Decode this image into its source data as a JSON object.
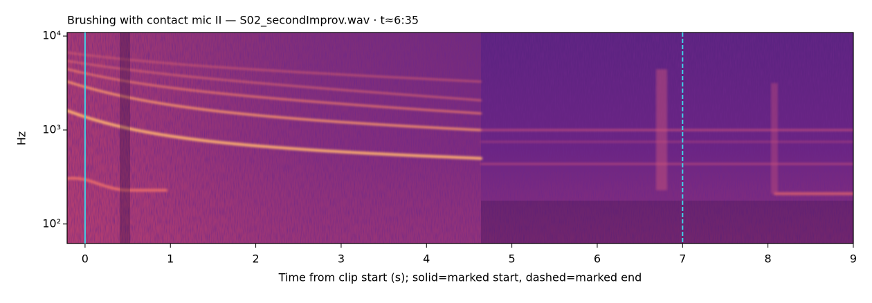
{
  "chart_data": {
    "type": "spectrogram",
    "title": "Brushing with contact mic II  —  S02_secondImprov.wav · t≈6:35",
    "x_label": "Time from clip start (s); solid=marked start, dashed=marked end",
    "y_label": "Hz",
    "xlim": [
      -0.21,
      9.0
    ],
    "xticks": [
      0,
      1,
      2,
      3,
      4,
      5,
      6,
      7,
      8,
      9
    ],
    "ylim": [
      62,
      10900
    ],
    "yscale": "log",
    "yticks": [
      {
        "value": 100,
        "label": "10²"
      },
      {
        "value": 1000,
        "label": "10³"
      },
      {
        "value": 10000,
        "label": "10⁴"
      }
    ],
    "colormap": "magma",
    "markers": [
      {
        "x": 0,
        "linestyle": "solid"
      },
      {
        "x": 7,
        "linestyle": "dashed"
      }
    ],
    "marker_color": "#3fd3e8"
  }
}
